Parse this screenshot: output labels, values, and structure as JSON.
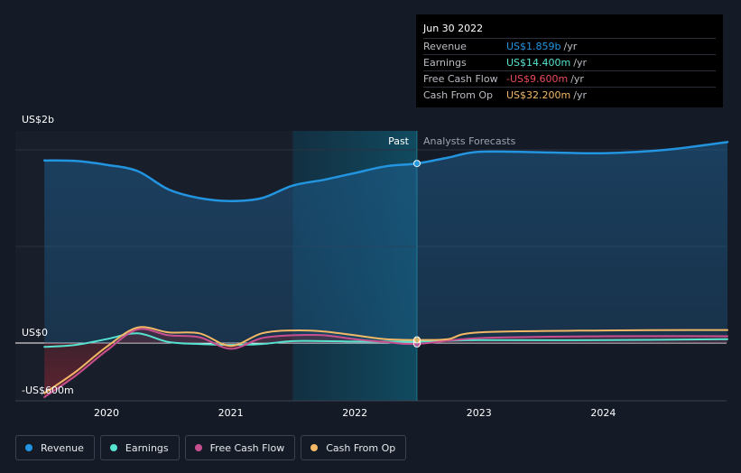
{
  "tooltip": {
    "date": "Jun 30 2022",
    "rows": [
      {
        "label": "Revenue",
        "value": "US$1.859b",
        "unit": "/yr",
        "color": "#2394df"
      },
      {
        "label": "Earnings",
        "value": "US$14.400m",
        "unit": "/yr",
        "color": "#56e3d0"
      },
      {
        "label": "Free Cash Flow",
        "value": "-US$9.600m",
        "unit": "/yr",
        "color": "#e84b5a"
      },
      {
        "label": "Cash From Op",
        "value": "US$32.200m",
        "unit": "/yr",
        "color": "#f2b866"
      }
    ]
  },
  "labels": {
    "past": "Past",
    "forecast": "Analysts Forecasts"
  },
  "legend": [
    {
      "label": "Revenue",
      "color": "#2394df"
    },
    {
      "label": "Earnings",
      "color": "#56e3d0"
    },
    {
      "label": "Free Cash Flow",
      "color": "#c84f8f"
    },
    {
      "label": "Cash From Op",
      "color": "#f2b866"
    }
  ],
  "chart_data": {
    "type": "line",
    "y_tick_labels": [
      "US$2b",
      "US$0",
      "-US$600m"
    ],
    "x_tick_labels": [
      "2020",
      "2021",
      "2022",
      "2023",
      "2024"
    ],
    "ylim": [
      -600,
      2000
    ],
    "past_end": 2022.5,
    "highlight_start": 2021.5,
    "series": [
      {
        "name": "Revenue",
        "color": "#2394df",
        "points": [
          [
            2019.5,
            1890
          ],
          [
            2019.75,
            1885
          ],
          [
            2020,
            1845
          ],
          [
            2020.25,
            1780
          ],
          [
            2020.5,
            1590
          ],
          [
            2020.75,
            1500
          ],
          [
            2021,
            1470
          ],
          [
            2021.25,
            1500
          ],
          [
            2021.5,
            1630
          ],
          [
            2021.75,
            1690
          ],
          [
            2022,
            1760
          ],
          [
            2022.25,
            1830
          ],
          [
            2022.5,
            1859
          ],
          [
            2022.75,
            1920
          ],
          [
            2023,
            1980
          ],
          [
            2023.5,
            1975
          ],
          [
            2024,
            1965
          ],
          [
            2024.5,
            2000
          ],
          [
            2025,
            2080
          ]
        ]
      },
      {
        "name": "Earnings",
        "color": "#56e3d0",
        "points": [
          [
            2019.5,
            -40
          ],
          [
            2019.75,
            -20
          ],
          [
            2020,
            40
          ],
          [
            2020.25,
            100
          ],
          [
            2020.5,
            10
          ],
          [
            2020.75,
            -10
          ],
          [
            2021,
            -20
          ],
          [
            2021.25,
            -10
          ],
          [
            2021.5,
            20
          ],
          [
            2021.75,
            20
          ],
          [
            2022,
            15
          ],
          [
            2022.25,
            15
          ],
          [
            2022.5,
            14.4
          ],
          [
            2023,
            30
          ],
          [
            2024,
            30
          ],
          [
            2025,
            40
          ]
        ]
      },
      {
        "name": "Free Cash Flow",
        "color": "#c84f8f",
        "points": [
          [
            2019.5,
            -560
          ],
          [
            2019.75,
            -340
          ],
          [
            2020,
            -80
          ],
          [
            2020.25,
            140
          ],
          [
            2020.5,
            80
          ],
          [
            2020.75,
            60
          ],
          [
            2021,
            -60
          ],
          [
            2021.25,
            50
          ],
          [
            2021.5,
            80
          ],
          [
            2021.75,
            80
          ],
          [
            2022,
            40
          ],
          [
            2022.25,
            10
          ],
          [
            2022.5,
            -9.6
          ],
          [
            2023,
            50
          ],
          [
            2024,
            70
          ],
          [
            2025,
            70
          ]
        ]
      },
      {
        "name": "Cash From Op",
        "color": "#f2b866",
        "points": [
          [
            2019.5,
            -520
          ],
          [
            2019.75,
            -300
          ],
          [
            2020,
            -40
          ],
          [
            2020.25,
            160
          ],
          [
            2020.5,
            110
          ],
          [
            2020.75,
            100
          ],
          [
            2021,
            -30
          ],
          [
            2021.25,
            100
          ],
          [
            2021.5,
            130
          ],
          [
            2021.75,
            120
          ],
          [
            2022,
            80
          ],
          [
            2022.25,
            40
          ],
          [
            2022.5,
            32.2
          ],
          [
            2022.75,
            40
          ],
          [
            2023,
            110
          ],
          [
            2024,
            130
          ],
          [
            2025,
            135
          ]
        ]
      }
    ]
  }
}
